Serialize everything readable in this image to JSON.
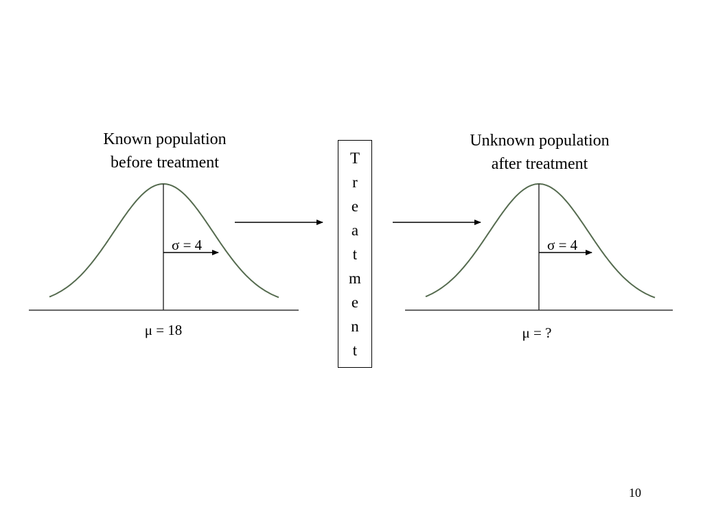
{
  "left": {
    "title_lines": [
      "Known population",
      "before treatment"
    ],
    "sigma_label": "σ = 4",
    "mu_label": "μ = 18"
  },
  "treatment": "Treatment",
  "right": {
    "title_lines": [
      "Unknown population",
      "after treatment"
    ],
    "sigma_label": "σ = 4",
    "mu_label": "μ = ?"
  },
  "page_number": "10"
}
